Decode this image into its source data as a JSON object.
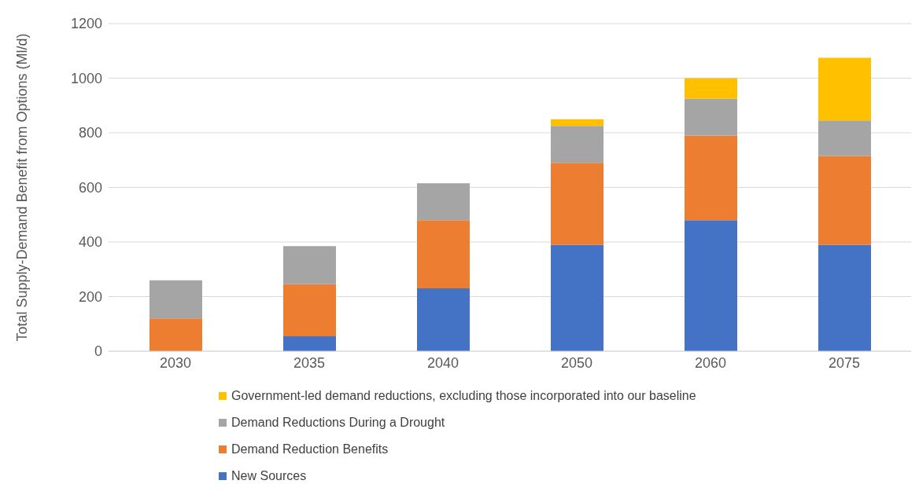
{
  "chart_data": {
    "type": "bar",
    "stacked": true,
    "ylabel": "Total Supply-Demand Benefit from Options (Ml/d)",
    "categories": [
      "2030",
      "2035",
      "2040",
      "2050",
      "2060",
      "2075"
    ],
    "series": [
      {
        "name": "New Sources",
        "color": "#4472c4",
        "values": [
          0,
          55,
          230,
          390,
          480,
          390
        ]
      },
      {
        "name": "Demand Reduction Benefits",
        "color": "#ed7d31",
        "values": [
          120,
          190,
          250,
          300,
          310,
          325
        ]
      },
      {
        "name": "Demand Reductions During a Drought",
        "color": "#a5a5a5",
        "values": [
          140,
          140,
          135,
          135,
          135,
          130
        ]
      },
      {
        "name": "Government-led demand reductions, excluding those incorporated into our baseline",
        "color": "#ffc000",
        "values": [
          0,
          0,
          0,
          25,
          75,
          230
        ]
      }
    ],
    "ylim": [
      0,
      1200
    ],
    "yticks": [
      0,
      200,
      400,
      600,
      800,
      1000,
      1200
    ],
    "grid": "y",
    "legend": "bottom"
  }
}
